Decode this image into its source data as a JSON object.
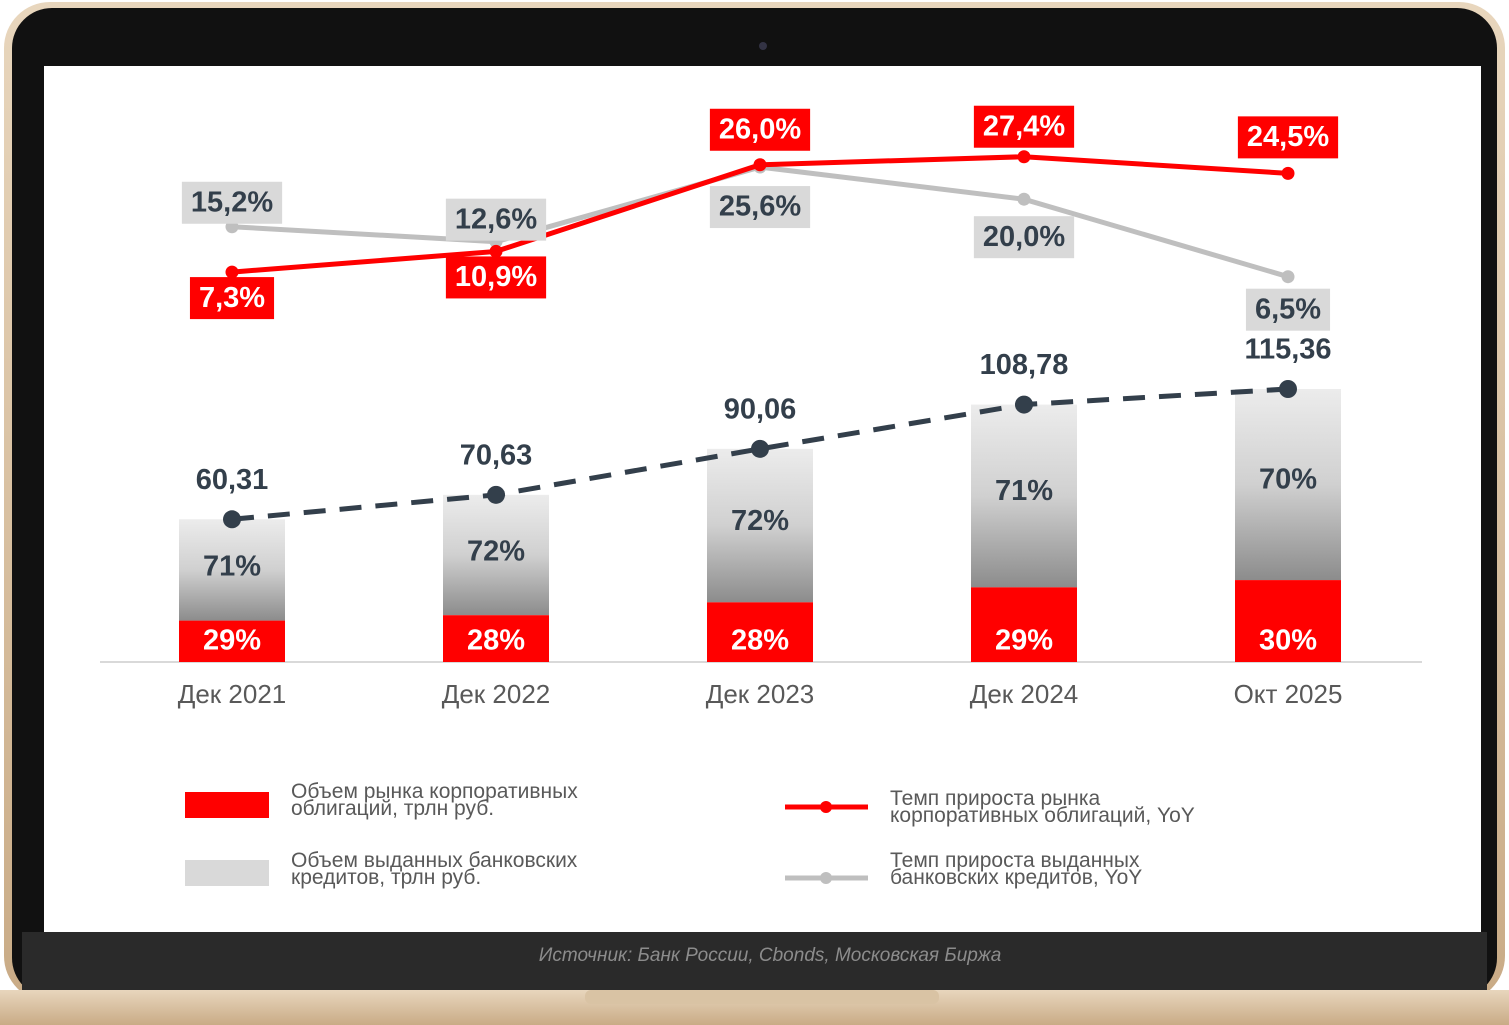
{
  "chart_data": {
    "type": "bar",
    "categories": [
      "Дек 2021",
      "Дек 2022",
      "Дек 2023",
      "Дек 2024",
      "Окт 2025"
    ],
    "series": [
      {
        "name": "Объем рынка корпоративных облигаций, трлн руб.",
        "color": "#ff0000",
        "values": [
          29,
          28,
          28,
          29,
          30
        ],
        "value_labels": [
          "29%",
          "28%",
          "28%",
          "29%",
          "30%"
        ]
      },
      {
        "name": "Объем выданных банковских кредитов, трлн руб.",
        "color": "#d9d9d9",
        "values": [
          71,
          72,
          72,
          71,
          70
        ],
        "value_labels": [
          "71%",
          "72%",
          "72%",
          "71%",
          "70%"
        ]
      }
    ],
    "totals": {
      "color": "#333f4b",
      "values": [
        60.31,
        70.63,
        90.06,
        108.78,
        115.36
      ],
      "value_labels": [
        "60,31",
        "70,63",
        "90,06",
        "108,78",
        "115,36"
      ]
    },
    "lines": [
      {
        "name": "Темп прироста рынка корпоративных облигаций, YoY",
        "color": "#ff0000",
        "values": [
          7.3,
          10.9,
          26.0,
          27.4,
          24.5
        ],
        "value_labels": [
          "7,3%",
          "10,9%",
          "26,0%",
          "27,4%",
          "24,5%"
        ]
      },
      {
        "name": "Темп прироста выданных банковских кредитов, YoY",
        "color": "#bfbfbf",
        "values": [
          15.2,
          12.6,
          25.6,
          20.0,
          6.5
        ],
        "value_labels": [
          "15,2%",
          "12,6%",
          "25,6%",
          "20,0%",
          "6,5%"
        ]
      }
    ],
    "source": "Источник: Банк России, Cbonds, Московская Биржа"
  }
}
